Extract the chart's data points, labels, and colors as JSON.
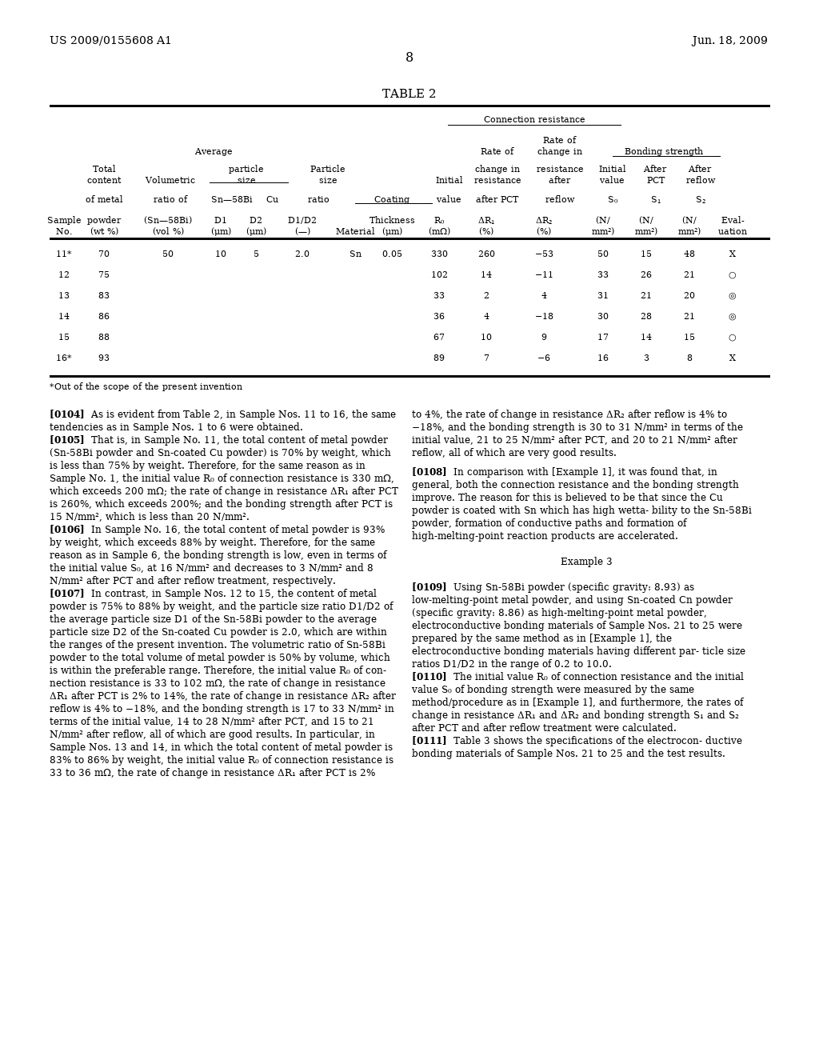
{
  "header_left": "US 2009/0155608 A1",
  "header_right": "Jun. 18, 2009",
  "page_number": "8",
  "table_title": "TABLE 2",
  "footnote": "*Out of the scope of the present invention",
  "bg_color": "#ffffff"
}
